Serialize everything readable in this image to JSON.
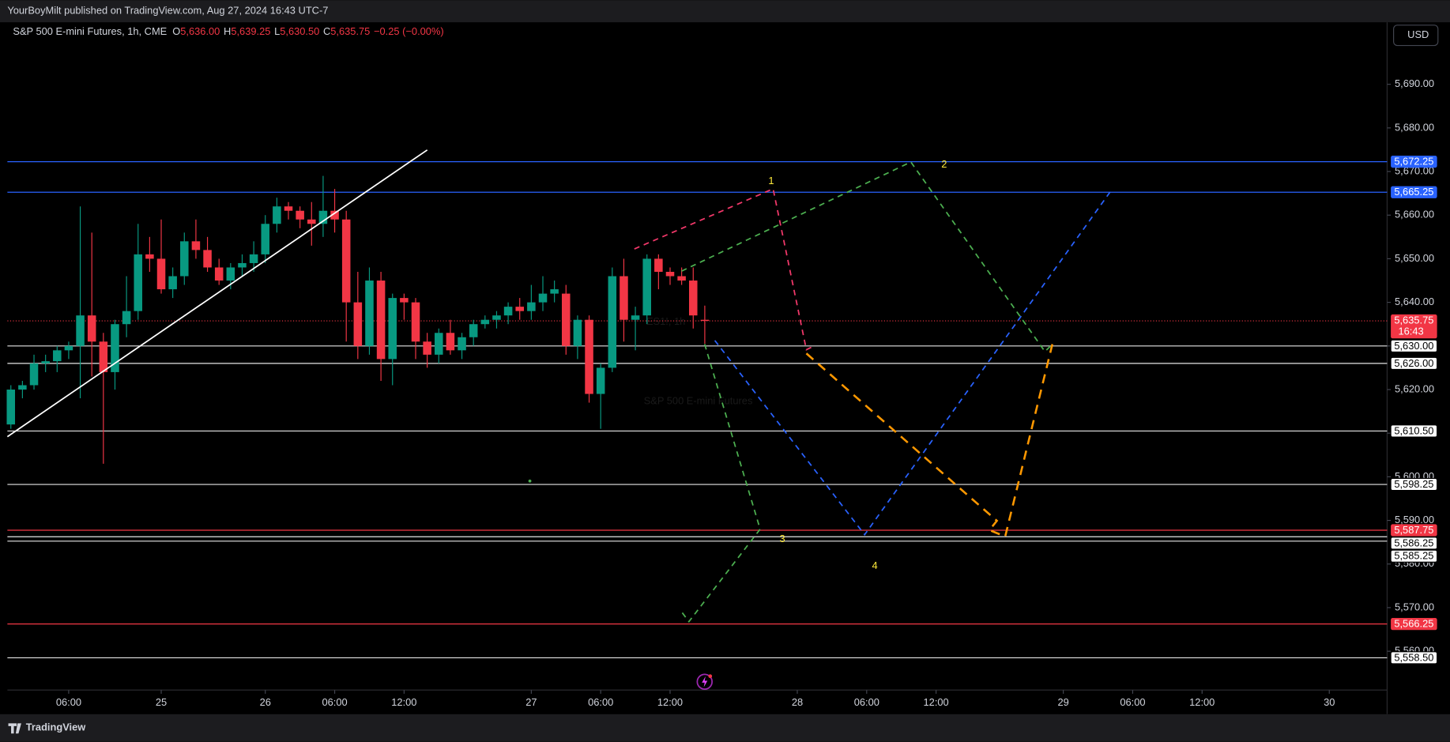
{
  "header": "YourBoyMilt published on TradingView.com, Aug 27, 2024 16:43 UTC-7",
  "footer": "TradingView",
  "chart_data": {
    "type": "candlestick",
    "title": "S&P 500 E-mini Futures, 1h, CME",
    "ohlc_legend": [
      {
        "key": "O",
        "value": "5,636.00"
      },
      {
        "key": "H",
        "value": "5,639.25"
      },
      {
        "key": "L",
        "value": "5,630.50"
      },
      {
        "key": "C",
        "value": "5,635.75"
      }
    ],
    "change": "−0.25 (−0.00%)",
    "currency": "USD",
    "watermark": [
      "ES1!, 1h",
      "S&P 500 E-mini Futures"
    ],
    "up_color": "#089981",
    "down_color": "#f23645",
    "open": [
      5612,
      5620,
      5621,
      5626,
      5626.5,
      5629,
      5630,
      5637,
      5631,
      5624,
      5635,
      5638,
      5651,
      5650,
      5643,
      5646,
      5654,
      5652,
      5648,
      5645,
      5648,
      5649,
      5651,
      5658,
      5662,
      5661,
      5659,
      5658,
      5661,
      5659,
      5640,
      5630,
      5645,
      5627,
      5641,
      5640,
      5631,
      5628,
      5633,
      5629,
      5632,
      5635,
      5636,
      5637,
      5639,
      5638,
      5640,
      5642,
      5642,
      5630,
      5636,
      5619,
      5625,
      5646,
      5636,
      5637,
      5650,
      5647,
      5646,
      5645,
      5636
    ],
    "high": [
      5621,
      5622,
      5628,
      5628,
      5630,
      5631,
      5662,
      5656,
      5633,
      5636,
      5646,
      5658,
      5655,
      5659,
      5648,
      5656,
      5659,
      5655,
      5650,
      5649,
      5651,
      5654,
      5660,
      5664,
      5663,
      5662,
      5663,
      5669,
      5666,
      5661,
      5647,
      5648,
      5647,
      5642,
      5642,
      5641,
      5633,
      5634,
      5636,
      5633,
      5636,
      5637,
      5638,
      5640,
      5641,
      5644,
      5646,
      5645,
      5644,
      5637,
      5637,
      5626,
      5648,
      5650,
      5639,
      5651,
      5651,
      5648,
      5648,
      5648,
      5639.25
    ],
    "low": [
      5611,
      5618,
      5620,
      5624,
      5624,
      5627,
      5618,
      5623,
      5603,
      5620,
      5632,
      5636,
      5647,
      5642,
      5641,
      5644,
      5650,
      5647,
      5644,
      5643,
      5646,
      5647,
      5649,
      5656,
      5659,
      5657,
      5653,
      5655,
      5656,
      5631,
      5627,
      5628,
      5622,
      5621,
      5636,
      5627,
      5625,
      5626,
      5628,
      5627,
      5630,
      5634,
      5634,
      5635,
      5636,
      5636,
      5638,
      5640,
      5628,
      5627,
      5617,
      5611,
      5624,
      5631,
      5629,
      5635,
      5643,
      5644,
      5644,
      5634,
      5630.5
    ],
    "close": [
      5620,
      5621,
      5626,
      5626.5,
      5629,
      5630,
      5637,
      5631,
      5624,
      5635,
      5638,
      5651,
      5650,
      5643,
      5646,
      5654,
      5652,
      5648,
      5645,
      5648,
      5649,
      5651,
      5658,
      5662,
      5661,
      5659,
      5658,
      5661,
      5659,
      5640,
      5630,
      5645,
      5627,
      5641,
      5640,
      5631,
      5628,
      5633,
      5629,
      5632,
      5635,
      5636,
      5637,
      5639,
      5638,
      5640,
      5642,
      5643,
      5630,
      5636,
      5619,
      5625,
      5646,
      5636,
      5637,
      5650,
      5647,
      5646,
      5645,
      5637,
      5635.75
    ],
    "xlim": [
      -0.3,
      119
    ],
    "xticks": [
      {
        "value": 5,
        "label": "06:00"
      },
      {
        "value": 13,
        "label": "25"
      },
      {
        "value": 22,
        "label": "26"
      },
      {
        "value": 28,
        "label": "06:00"
      },
      {
        "value": 34,
        "label": "12:00"
      },
      {
        "value": 45,
        "label": "27"
      },
      {
        "value": 51,
        "label": "06:00"
      },
      {
        "value": 57,
        "label": "12:00"
      },
      {
        "value": 68,
        "label": "28"
      },
      {
        "value": 74,
        "label": "06:00"
      },
      {
        "value": 80,
        "label": "12:00"
      },
      {
        "value": 91,
        "label": "29"
      },
      {
        "value": 97,
        "label": "06:00"
      },
      {
        "value": 103,
        "label": "12:00"
      },
      {
        "value": 114,
        "label": "30"
      }
    ],
    "ylim": [
      5545.8,
      5704.2
    ],
    "yticks": [
      {
        "value": 5560,
        "label": "5,560.00"
      },
      {
        "value": 5570,
        "label": "5,570.00"
      },
      {
        "value": 5580,
        "label": "5,580.00"
      },
      {
        "value": 5590,
        "label": "5,590.00"
      },
      {
        "value": 5600,
        "label": "5,600.00"
      },
      {
        "value": 5610,
        "label": "5,610.00"
      },
      {
        "value": 5620,
        "label": "5,620.00"
      },
      {
        "value": 5630,
        "label": "5,630.00"
      },
      {
        "value": 5640,
        "label": "5,640.00"
      },
      {
        "value": 5650,
        "label": "5,650.00"
      },
      {
        "value": 5660,
        "label": "5,660.00"
      },
      {
        "value": 5670,
        "label": "5,670.00"
      },
      {
        "value": 5680,
        "label": "5,680.00"
      },
      {
        "value": 5690,
        "label": "5,690.00"
      }
    ],
    "grid": false,
    "levels": [
      {
        "value": 5672.25,
        "label": "5,672.25",
        "color": "#2962ff"
      },
      {
        "value": 5665.25,
        "label": "5,665.25",
        "color": "#2962ff"
      },
      {
        "value": 5630.0,
        "label": "5,630.00",
        "color": "#e6e6e6"
      },
      {
        "value": 5626.0,
        "label": "5,626.00",
        "color": "#e6e6e6"
      },
      {
        "value": 5610.5,
        "label": "5,610.50",
        "color": "#e6e6e6"
      },
      {
        "value": 5598.25,
        "label": "5,598.25",
        "color": "#e6e6e6"
      },
      {
        "value": 5587.75,
        "label": "5,587.75",
        "color": "#f23645"
      },
      {
        "value": 5586.25,
        "label": "5,586.25",
        "color": "#e6e6e6"
      },
      {
        "value": 5585.25,
        "label": "5,585.25",
        "color": "#e6e6e6"
      },
      {
        "value": 5566.25,
        "label": "5,566.25",
        "color": "#f23645"
      },
      {
        "value": 5558.5,
        "label": "5,558.50",
        "color": "#e6e6e6"
      }
    ],
    "last_price": {
      "value": 5635.75,
      "label": "5,635.75",
      "time": "16:43",
      "color": "#f23645"
    },
    "annotations": [
      "1",
      "2",
      "3",
      "4"
    ]
  }
}
